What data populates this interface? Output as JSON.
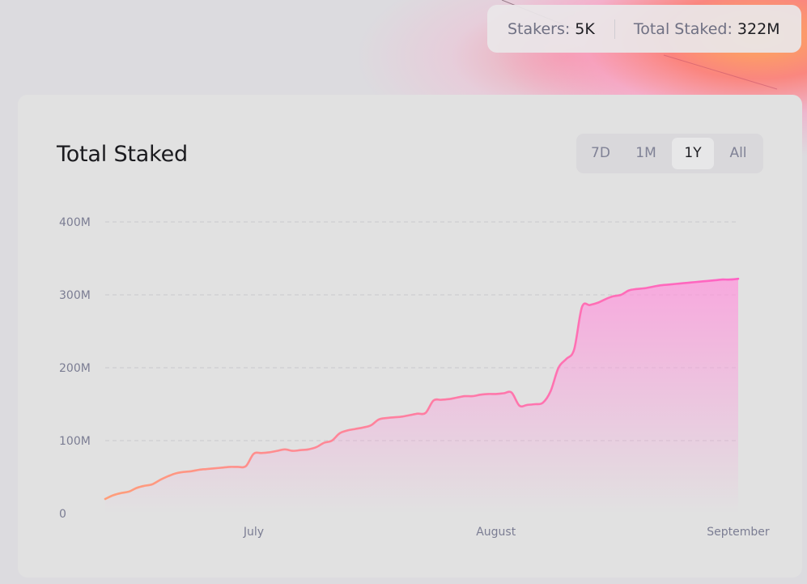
{
  "stats": {
    "stakers_label": "Stakers:",
    "stakers_value": "5K",
    "total_label": "Total Staked:",
    "total_value": "322M"
  },
  "card": {
    "title": "Total Staked"
  },
  "range_tabs": [
    {
      "label": "7D",
      "active": false
    },
    {
      "label": "1M",
      "active": false
    },
    {
      "label": "1Y",
      "active": true
    },
    {
      "label": "All",
      "active": false
    }
  ],
  "colors": {
    "line_start": "#ff9e7a",
    "line_end": "#ff63c4",
    "area": "#ff96dc",
    "grid": "#c9c9cd"
  },
  "chart_data": {
    "type": "area",
    "title": "Total Staked",
    "xlabel": "",
    "ylabel": "",
    "y_ticks": [
      {
        "value": 0,
        "label": "0"
      },
      {
        "value": 100,
        "label": "100M"
      },
      {
        "value": 200,
        "label": "200M"
      },
      {
        "value": 300,
        "label": "300M"
      },
      {
        "value": 400,
        "label": "400M"
      }
    ],
    "ylim": [
      0,
      400
    ],
    "y_unit": "M",
    "x_ticks": [
      {
        "date": "2023-07-01",
        "label": "July"
      },
      {
        "date": "2023-08-01",
        "label": "August"
      },
      {
        "date": "2023-09-01",
        "label": "September"
      }
    ],
    "xlim": [
      "2023-06-12",
      "2023-09-01"
    ],
    "grid": "horizontal dashed",
    "legend": "none",
    "series": [
      {
        "points": [
          [
            "2023-06-12",
            20
          ],
          [
            "2023-06-13",
            25
          ],
          [
            "2023-06-14",
            28
          ],
          [
            "2023-06-15",
            30
          ],
          [
            "2023-06-16",
            35
          ],
          [
            "2023-06-17",
            38
          ],
          [
            "2023-06-18",
            40
          ],
          [
            "2023-06-19",
            46
          ],
          [
            "2023-06-20",
            51
          ],
          [
            "2023-06-21",
            55
          ],
          [
            "2023-06-22",
            57
          ],
          [
            "2023-06-23",
            58
          ],
          [
            "2023-06-24",
            60
          ],
          [
            "2023-06-25",
            61
          ],
          [
            "2023-06-26",
            62
          ],
          [
            "2023-06-27",
            63
          ],
          [
            "2023-06-28",
            64
          ],
          [
            "2023-06-29",
            64
          ],
          [
            "2023-06-30",
            65
          ],
          [
            "2023-07-01",
            82
          ],
          [
            "2023-07-02",
            83
          ],
          [
            "2023-07-03",
            84
          ],
          [
            "2023-07-04",
            86
          ],
          [
            "2023-07-05",
            88
          ],
          [
            "2023-07-06",
            86
          ],
          [
            "2023-07-07",
            87
          ],
          [
            "2023-07-08",
            88
          ],
          [
            "2023-07-09",
            91
          ],
          [
            "2023-07-10",
            97
          ],
          [
            "2023-07-11",
            100
          ],
          [
            "2023-07-12",
            110
          ],
          [
            "2023-07-13",
            114
          ],
          [
            "2023-07-14",
            116
          ],
          [
            "2023-07-15",
            118
          ],
          [
            "2023-07-16",
            121
          ],
          [
            "2023-07-17",
            129
          ],
          [
            "2023-07-18",
            131
          ],
          [
            "2023-07-19",
            132
          ],
          [
            "2023-07-20",
            133
          ],
          [
            "2023-07-21",
            135
          ],
          [
            "2023-07-22",
            137
          ],
          [
            "2023-07-23",
            138
          ],
          [
            "2023-07-24",
            155
          ],
          [
            "2023-07-25",
            156
          ],
          [
            "2023-07-26",
            157
          ],
          [
            "2023-07-27",
            159
          ],
          [
            "2023-07-28",
            161
          ],
          [
            "2023-07-29",
            161
          ],
          [
            "2023-07-30",
            163
          ],
          [
            "2023-07-31",
            164
          ],
          [
            "2023-08-01",
            164
          ],
          [
            "2023-08-02",
            165
          ],
          [
            "2023-08-03",
            166
          ],
          [
            "2023-08-04",
            148
          ],
          [
            "2023-08-05",
            149
          ],
          [
            "2023-08-06",
            150
          ],
          [
            "2023-08-07",
            152
          ],
          [
            "2023-08-08",
            168
          ],
          [
            "2023-08-09",
            200
          ],
          [
            "2023-08-10",
            212
          ],
          [
            "2023-08-11",
            225
          ],
          [
            "2023-08-12",
            283
          ],
          [
            "2023-08-13",
            286
          ],
          [
            "2023-08-14",
            289
          ],
          [
            "2023-08-15",
            294
          ],
          [
            "2023-08-16",
            298
          ],
          [
            "2023-08-17",
            300
          ],
          [
            "2023-08-18",
            306
          ],
          [
            "2023-08-19",
            308
          ],
          [
            "2023-08-20",
            309
          ],
          [
            "2023-08-21",
            311
          ],
          [
            "2023-08-22",
            313
          ],
          [
            "2023-08-23",
            314
          ],
          [
            "2023-08-24",
            315
          ],
          [
            "2023-08-25",
            316
          ],
          [
            "2023-08-26",
            317
          ],
          [
            "2023-08-27",
            318
          ],
          [
            "2023-08-28",
            319
          ],
          [
            "2023-08-29",
            320
          ],
          [
            "2023-08-30",
            321
          ],
          [
            "2023-08-31",
            321
          ],
          [
            "2023-09-01",
            322
          ]
        ]
      }
    ]
  }
}
